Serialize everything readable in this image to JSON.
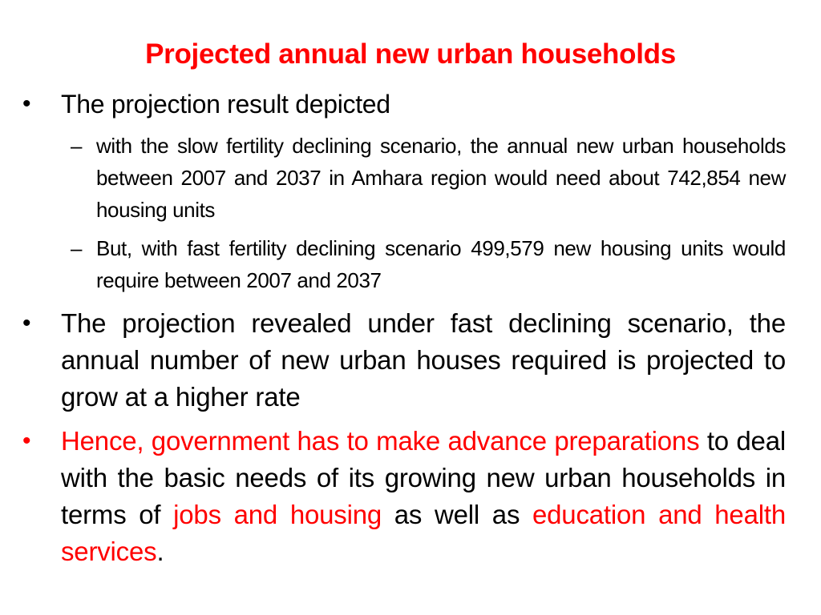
{
  "slide": {
    "title": "Projected annual new urban households",
    "bullet1": {
      "mark": "•",
      "text": "The projection result depicted"
    },
    "sub1": {
      "mark": "–",
      "text": "with the slow fertility declining scenario, the annual new urban households between 2007 and 2037 in Amhara region would need about 742,854 new housing units"
    },
    "sub2": {
      "mark": "–",
      "text": "But, with fast fertility declining scenario 499,579 new housing units would require between 2007 and 2037"
    },
    "bullet2": {
      "mark": "•",
      "text": "The projection revealed under fast declining scenario, the annual number of new urban houses required is projected to grow at a higher rate"
    },
    "bullet3": {
      "mark": "•",
      "part1": "Hence, government has to make advance preparations",
      "part2": " to deal with the basic needs of its growing new urban households in terms of ",
      "part3": "jobs and housing",
      "part4": " as well as ",
      "part5": "education and health services",
      "part6": "."
    }
  },
  "colors": {
    "accent": "#ff0000",
    "text": "#000000",
    "background": "#ffffff"
  }
}
